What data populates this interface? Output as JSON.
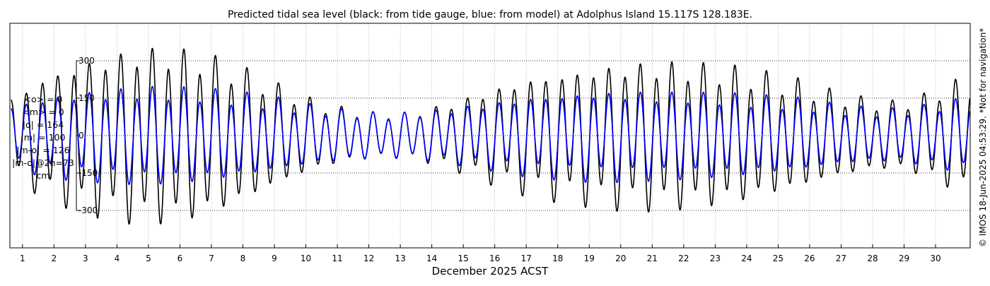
{
  "chart_data": {
    "type": "line",
    "title": "Predicted tidal sea level (black: from tide gauge, blue: from model) at Adolphus Island 15.117S 128.183E.",
    "xlabel": "December 2025 ACST",
    "ylabel": "",
    "xlim": [
      0.6,
      31.1
    ],
    "ylim": [
      -450,
      450
    ],
    "yticks": [
      300,
      150,
      0,
      -150,
      -300
    ],
    "ytick_labels": [
      "300",
      "150",
      "0",
      "-150",
      "-300"
    ],
    "xticks": [
      1,
      2,
      3,
      4,
      5,
      6,
      7,
      8,
      9,
      10,
      11,
      12,
      13,
      14,
      15,
      16,
      17,
      18,
      19,
      20,
      21,
      22,
      23,
      24,
      25,
      26,
      27,
      28,
      29,
      30
    ],
    "xtick_labels": [
      "1",
      "2",
      "3",
      "4",
      "5",
      "6",
      "7",
      "8",
      "9",
      "10",
      "11",
      "12",
      "13",
      "14",
      "15",
      "16",
      "17",
      "18",
      "19",
      "20",
      "21",
      "22",
      "23",
      "24",
      "25",
      "26",
      "27",
      "28",
      "29",
      "30"
    ],
    "grid": true,
    "stats": [
      "<o> = 0",
      "<m> = 0",
      "|o| = 164",
      "|m| = 100",
      "|m-o| = 126",
      "|m-o|@2h=73",
      "cm"
    ],
    "copyright": "© IMOS 18-Jun-2025 04:53:29. *Not for navigation*",
    "series": [
      {
        "name": "tide gauge",
        "color": "#000000",
        "x": [
          0.63,
          1.13,
          1.63,
          2.13,
          2.63,
          3.13,
          3.63,
          4.13,
          4.63,
          5.13,
          5.63,
          6.13,
          6.63,
          7.13,
          7.63,
          8.13,
          8.63,
          9.13,
          9.63,
          10.13,
          10.63,
          11.13,
          11.63,
          12.13,
          12.63,
          13.13,
          13.63,
          14.13,
          14.63,
          15.13,
          15.63,
          16.13,
          16.63,
          17.13,
          17.63,
          18.13,
          18.63,
          19.13,
          19.63,
          20.13,
          20.63,
          21.13,
          21.63,
          22.13,
          22.63,
          23.13,
          23.63,
          24.13,
          24.63,
          25.13,
          25.63,
          26.13,
          26.63,
          27.13,
          27.63,
          28.13,
          28.63,
          29.13,
          29.63,
          30.13,
          30.63
        ],
        "amplitude": [
          165,
          195,
          255,
          265,
          305,
          310,
          345,
          340,
          375,
          355,
          375,
          345,
          355,
          315,
          305,
          265,
          245,
          205,
          185,
          150,
          130,
          115,
          105,
          95,
          90,
          95,
          105,
          120,
          140,
          160,
          185,
          205,
          225,
          245,
          255,
          265,
          275,
          285,
          295,
          300,
          305,
          305,
          305,
          300,
          295,
          290,
          280,
          270,
          255,
          240,
          225,
          205,
          185,
          170,
          155,
          145,
          140,
          150,
          170,
          195,
          230
        ]
      },
      {
        "name": "model",
        "color": "#0000ff",
        "x": [
          0.63,
          1.13,
          1.63,
          2.13,
          2.63,
          3.13,
          3.63,
          4.13,
          4.63,
          5.13,
          5.63,
          6.13,
          6.63,
          7.13,
          7.63,
          8.13,
          8.63,
          9.13,
          9.63,
          10.13,
          10.63,
          11.13,
          11.63,
          12.13,
          12.63,
          13.13,
          13.63,
          14.13,
          14.63,
          15.13,
          15.63,
          16.13,
          16.63,
          17.13,
          17.63,
          18.13,
          18.63,
          19.13,
          19.63,
          20.13,
          20.63,
          21.13,
          21.63,
          22.13,
          22.63,
          23.13,
          23.63,
          24.13,
          24.63,
          25.13,
          25.63,
          26.13,
          26.63,
          27.13,
          27.63,
          28.13,
          28.63,
          29.13,
          29.63,
          30.13,
          30.63
        ],
        "amplitude": [
          125,
          145,
          160,
          170,
          180,
          185,
          190,
          195,
          200,
          200,
          200,
          195,
          195,
          185,
          180,
          170,
          160,
          150,
          135,
          125,
          115,
          105,
          100,
          95,
          95,
          95,
          100,
          105,
          115,
          125,
          135,
          145,
          155,
          165,
          170,
          175,
          180,
          185,
          185,
          185,
          185,
          180,
          180,
          180,
          175,
          175,
          170,
          165,
          160,
          155,
          150,
          140,
          130,
          120,
          115,
          110,
          110,
          115,
          125,
          135,
          150
        ]
      }
    ]
  }
}
